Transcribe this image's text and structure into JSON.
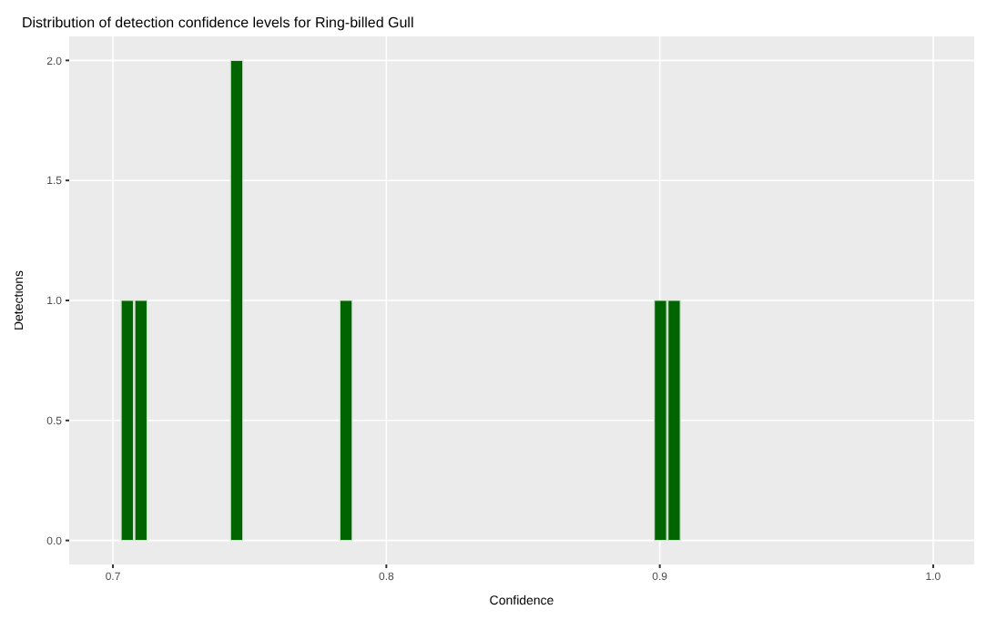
{
  "chart_data": {
    "type": "histogram",
    "title": "Distribution of detection confidence levels for Ring-billed Gull",
    "xlabel": "Confidence",
    "ylabel": "Detections",
    "bins": [
      0.703,
      0.708,
      0.713,
      0.718,
      0.723,
      0.728,
      0.733,
      0.738,
      0.743,
      0.748,
      0.753,
      0.758,
      0.763,
      0.768,
      0.773,
      0.778,
      0.783,
      0.788,
      0.793,
      0.798,
      0.803,
      0.808,
      0.813,
      0.818,
      0.823,
      0.828,
      0.833,
      0.838,
      0.843,
      0.848,
      0.853,
      0.858,
      0.863,
      0.868,
      0.873,
      0.878,
      0.883,
      0.888,
      0.893,
      0.898,
      0.903,
      0.908
    ],
    "values": [
      1,
      1,
      0,
      0,
      0,
      0,
      0,
      0,
      2,
      0,
      0,
      0,
      0,
      0,
      0,
      0,
      1,
      0,
      0,
      0,
      0,
      0,
      0,
      0,
      0,
      0,
      0,
      0,
      0,
      0,
      0,
      0,
      0,
      0,
      0,
      0,
      0,
      0,
      0,
      1,
      1
    ],
    "color": "#006400",
    "xlim": [
      0.684,
      1.015
    ],
    "xticks": [
      0.7,
      0.8,
      0.9,
      {
        "value": 1,
        "label": "1.0"
      }
    ],
    "ylim": [
      -0.1,
      2.1
    ],
    "yticks": [
      {
        "value": 0,
        "label": "0.0"
      },
      0.5,
      {
        "value": 1,
        "label": "1.0"
      },
      1.5,
      {
        "value": 2,
        "label": "2.0"
      }
    ],
    "grid": true
  }
}
